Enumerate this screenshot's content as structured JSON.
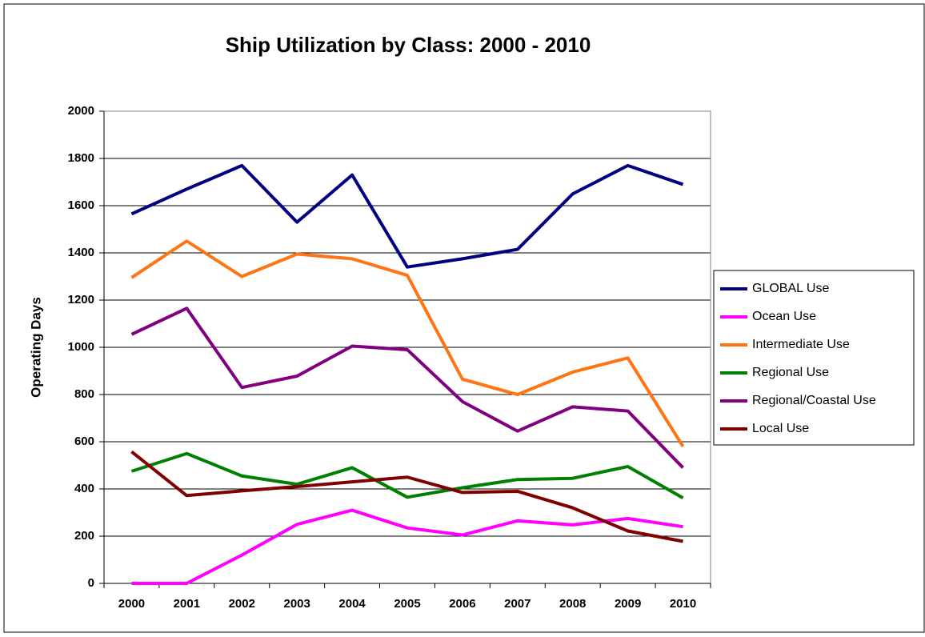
{
  "chart_data": {
    "type": "line",
    "title": "Ship Utilization by Class:  2000 - 2010",
    "y_label": "Operating Days",
    "categories": [
      "2000",
      "2001",
      "2002",
      "2003",
      "2004",
      "2005",
      "2006",
      "2007",
      "2008",
      "2009",
      "2010"
    ],
    "series": [
      {
        "name": "GLOBAL Use",
        "color": "#000080",
        "values": [
          1565,
          1670,
          1770,
          1530,
          1730,
          1340,
          1375,
          1415,
          1650,
          1770,
          1690
        ]
      },
      {
        "name": "Ocean Use",
        "color": "#ff00ff",
        "values": [
          0,
          0,
          120,
          250,
          310,
          235,
          205,
          265,
          248,
          275,
          240
        ]
      },
      {
        "name": "Intermediate Use",
        "color": "#ff7413",
        "values": [
          1295,
          1450,
          1300,
          1395,
          1375,
          1305,
          865,
          800,
          895,
          955,
          580
        ]
      },
      {
        "name": "Regional Use",
        "color": "#008000",
        "values": [
          475,
          550,
          455,
          420,
          490,
          365,
          405,
          440,
          445,
          495,
          362
        ]
      },
      {
        "name": "Regional/Coastal Use",
        "color": "#800080",
        "values": [
          1055,
          1165,
          830,
          878,
          1005,
          990,
          770,
          645,
          748,
          730,
          490
        ]
      },
      {
        "name": "Local Use",
        "color": "#800000",
        "values": [
          558,
          372,
          392,
          410,
          430,
          450,
          385,
          390,
          320,
          222,
          178
        ]
      }
    ],
    "ylim": [
      0,
      2000
    ],
    "yticks": [
      0,
      200,
      400,
      600,
      800,
      1000,
      1200,
      1400,
      1600,
      1800,
      2000
    ],
    "grid": true,
    "legend": "right"
  }
}
